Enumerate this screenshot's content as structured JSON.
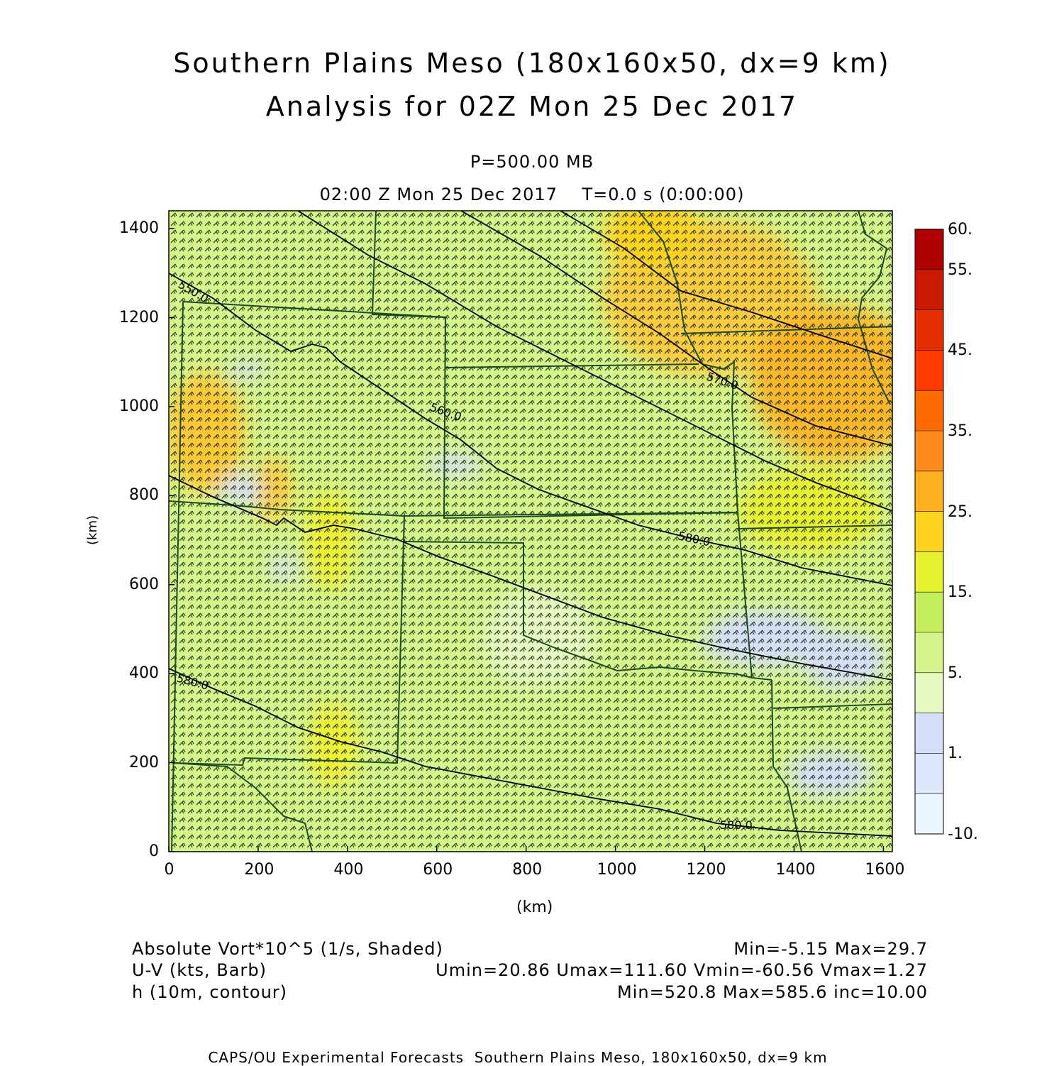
{
  "title": {
    "line1": "Southern Plains Meso (180x160x50, dx=9 km)",
    "line2": "Analysis for 02Z Mon 25 Dec 2017"
  },
  "subtitle": {
    "pressure": "P=500.00 MB",
    "time": "02:00 Z Mon 25 Dec 2017    T=0.0 s (0:00:00)"
  },
  "axes": {
    "xlabel": "(km)",
    "ylabel": "(km)",
    "xticks": [
      "0",
      "200",
      "400",
      "600",
      "800",
      "1000",
      "1200",
      "1400",
      "1600"
    ],
    "yticks": [
      "0",
      "200",
      "400",
      "600",
      "800",
      "1000",
      "1200",
      "1400"
    ],
    "xrange": [
      0,
      1620
    ],
    "yrange": [
      0,
      1440
    ]
  },
  "colorbar": {
    "labels": [
      "60.",
      "55.",
      "45.",
      "35.",
      "25.",
      "15.",
      "5.",
      "1.",
      "-10."
    ],
    "colors": [
      "#b00000",
      "#cc1a00",
      "#e62e00",
      "#ff3c00",
      "#ff6a00",
      "#ff8c1a",
      "#ffb020",
      "#ffd21e",
      "#e8f032",
      "#c4ee5c",
      "#d4f58c",
      "#e4fac0",
      "#d4def8",
      "#dce8fc",
      "#e8f6ff"
    ]
  },
  "contours": {
    "labels": [
      "550.0",
      "560.0",
      "570.0",
      "580.0",
      "580.0",
      "580.0"
    ]
  },
  "info": {
    "field1": "Absolute Vort*10^5 (1/s, Shaded)",
    "field1_stats": "Min=-5.15 Max=29.7",
    "field2": "U-V (kts, Barb)",
    "field2_stats": "Umin=20.86 Umax=111.60 Vmin=-60.56 Vmax=1.27",
    "field3": "h (10m, contour)",
    "field3_stats": "Min=520.8 Max=585.6 inc=10.00"
  },
  "footer": "CAPS/OU Experimental Forecasts  Southern Plains Meso, 180x160x50, dx=9 km"
}
